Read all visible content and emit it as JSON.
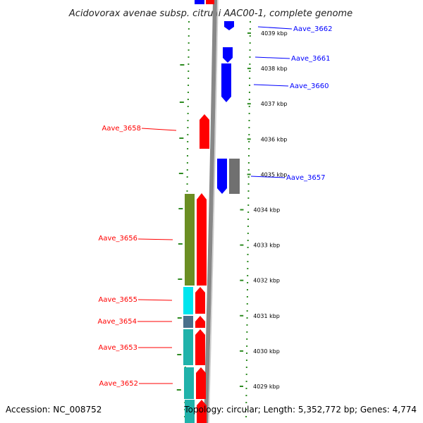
{
  "title": "Acidovorax avenae subsp. citrulli AAC00-1, complete genome",
  "footer": {
    "accession": "Accession: NC_008752",
    "topology": "Topology: circular; Length: 5,352,772 bp; Genes: 4,774"
  },
  "colors": {
    "forward_strand": "#ff0000",
    "reverse_strand": "#0000ff",
    "olive_feature": "#6b8e23",
    "cyan_feature": "#00e5ee",
    "teal_feature": "#20b2aa",
    "steelblue_feature": "#4a708b",
    "gray_feature": "#707070",
    "tick_color": "#2e8b22",
    "backbone_color": "#888888"
  },
  "axis": {
    "unit": "kbp",
    "ticks": [
      {
        "label": "4039 kbp",
        "value": 4039
      },
      {
        "label": "4038 kbp",
        "value": 4038
      },
      {
        "label": "4037 kbp",
        "value": 4037
      },
      {
        "label": "4036 kbp",
        "value": 4036
      },
      {
        "label": "4035 kbp",
        "value": 4035
      },
      {
        "label": "4034 kbp",
        "value": 4034
      },
      {
        "label": "4033 kbp",
        "value": 4033
      },
      {
        "label": "4032 kbp",
        "value": 4032
      },
      {
        "label": "4031 kbp",
        "value": 4031
      },
      {
        "label": "4030 kbp",
        "value": 4030
      },
      {
        "label": "4029 kbp",
        "value": 4029
      }
    ]
  },
  "genes": [
    {
      "label": "Aave_3662",
      "strand": "reverse",
      "color": "#0000ff"
    },
    {
      "label": "Aave_3661",
      "strand": "reverse",
      "color": "#0000ff"
    },
    {
      "label": "Aave_3660",
      "strand": "reverse",
      "color": "#0000ff"
    },
    {
      "label": "Aave_3658",
      "strand": "forward",
      "color": "#ff0000"
    },
    {
      "label": "Aave_3657",
      "strand": "reverse",
      "color": "#0000ff"
    },
    {
      "label": "Aave_3656",
      "strand": "forward",
      "color": "#ff0000"
    },
    {
      "label": "Aave_3655",
      "strand": "forward",
      "color": "#ff0000"
    },
    {
      "label": "Aave_3654",
      "strand": "forward",
      "color": "#ff0000"
    },
    {
      "label": "Aave_3653",
      "strand": "forward",
      "color": "#ff0000"
    },
    {
      "label": "Aave_3652",
      "strand": "forward",
      "color": "#ff0000"
    }
  ]
}
